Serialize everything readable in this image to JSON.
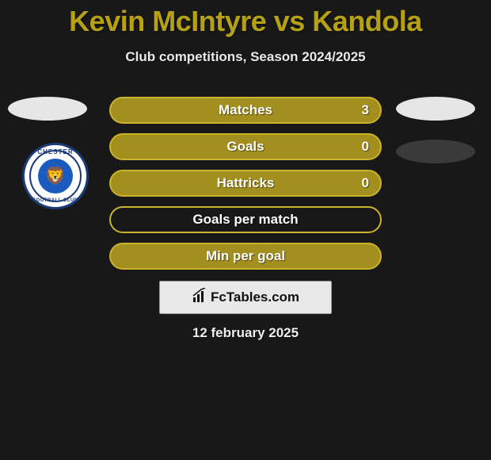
{
  "title_color": "#b6a014",
  "title": "Kevin McIntyre vs Kandola",
  "subtitle": "Club competitions, Season 2024/2025",
  "badge": {
    "top_text": "CHESTER",
    "bottom_text": "FOOTBALL CLUB",
    "ring_color": "#1b3a7a",
    "center_color": "#1b5bbf"
  },
  "bars": [
    {
      "label": "Matches",
      "value": "3",
      "fill": "#a38f1f",
      "border": "#cbb32a"
    },
    {
      "label": "Goals",
      "value": "0",
      "fill": "#a38f1f",
      "border": "#cbb32a"
    },
    {
      "label": "Hattricks",
      "value": "0",
      "fill": "#a38f1f",
      "border": "#cbb32a"
    },
    {
      "label": "Goals per match",
      "value": "",
      "fill": "#181818",
      "border": "#cbb32a"
    },
    {
      "label": "Min per goal",
      "value": "",
      "fill": "#a38f1f",
      "border": "#cbb32a"
    }
  ],
  "brand": "FcTables.com",
  "date": "12 february 2025"
}
